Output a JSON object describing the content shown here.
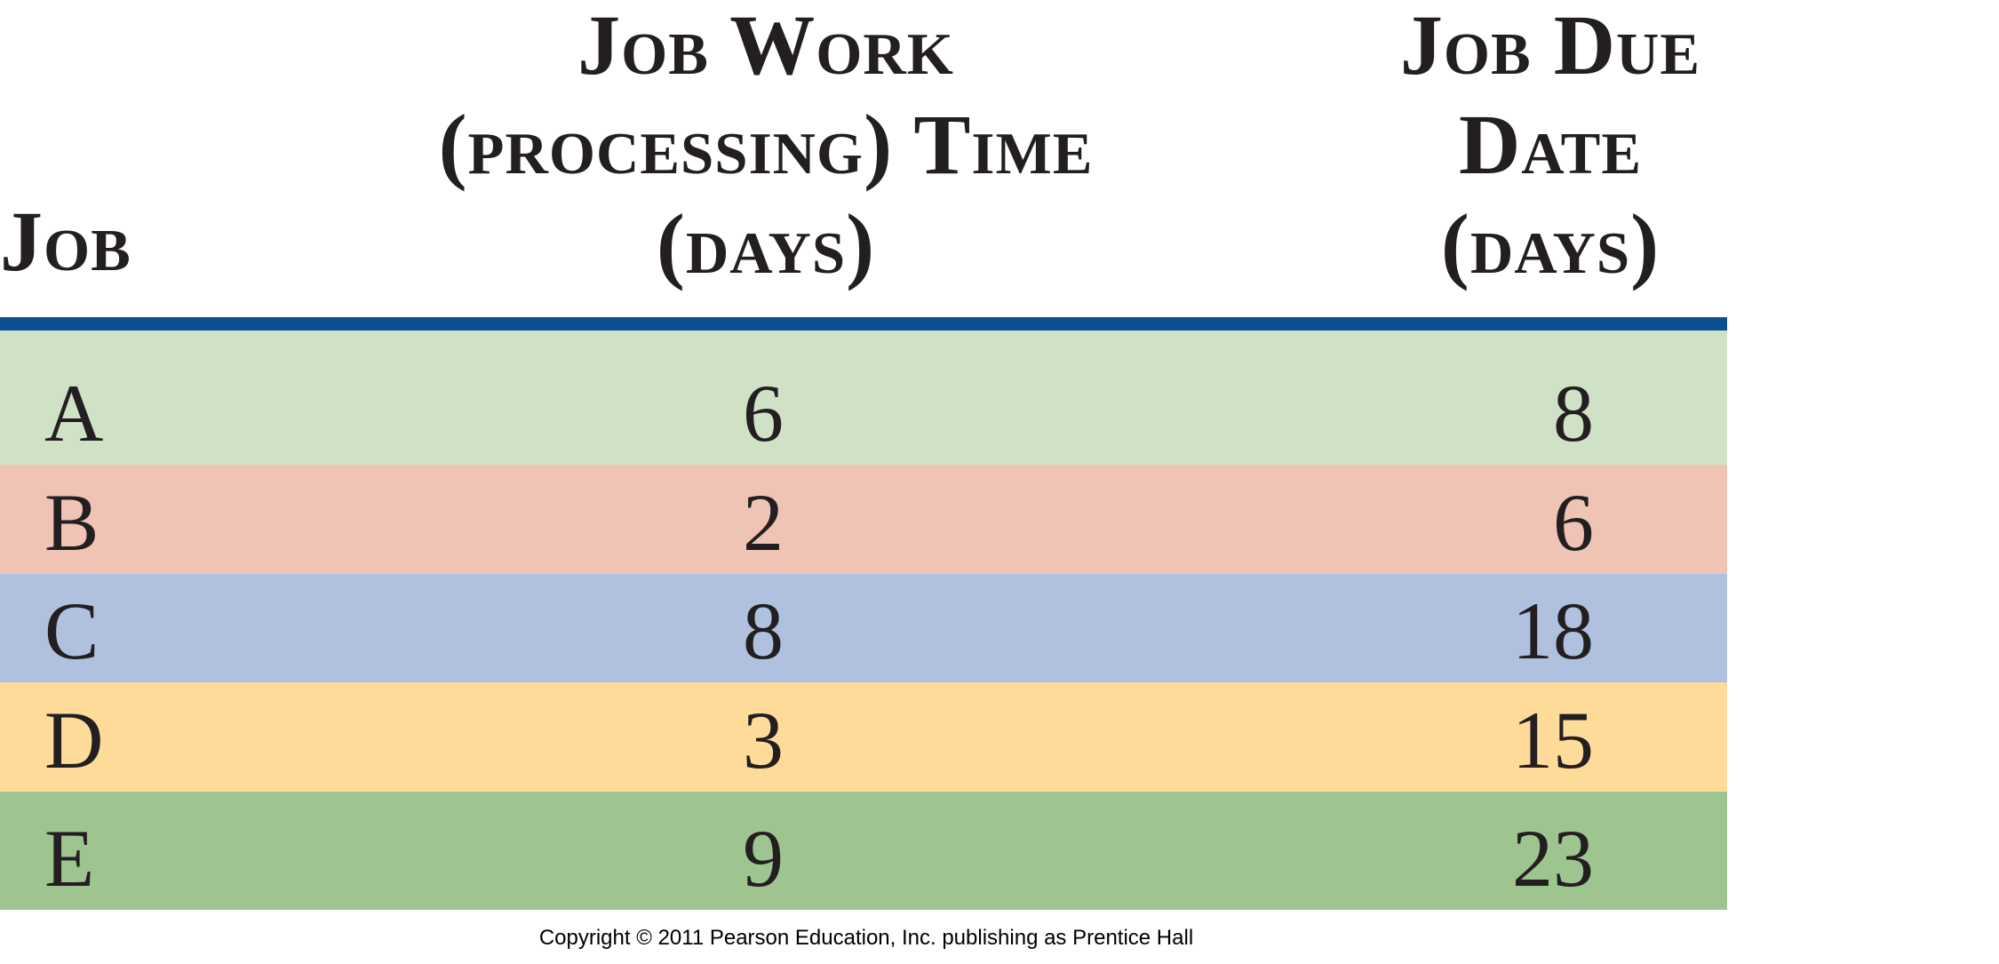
{
  "table": {
    "headers": {
      "job": "Job",
      "work_line1": "Job Work",
      "work_line2": "(processing) Time",
      "work_line3": "(days)",
      "due_line1": "Job Due",
      "due_line2": "Date",
      "due_line3": "(days)"
    },
    "rows": [
      {
        "job": "A",
        "work": "6",
        "due": "8",
        "color": "#cfe2c6"
      },
      {
        "job": "B",
        "work": "2",
        "due": "6",
        "color": "#f0c4b5"
      },
      {
        "job": "C",
        "work": "8",
        "due": "18",
        "color": "#b0c1e0"
      },
      {
        "job": "D",
        "work": "3",
        "due": "15",
        "color": "#fedb98"
      },
      {
        "job": "E",
        "work": "9",
        "due": "23",
        "color": "#9ec590"
      }
    ],
    "rule_color": "#0b4f93"
  },
  "footer": {
    "copyright": "Copyright © 2011 Pearson Education, Inc. publishing as Prentice Hall"
  }
}
